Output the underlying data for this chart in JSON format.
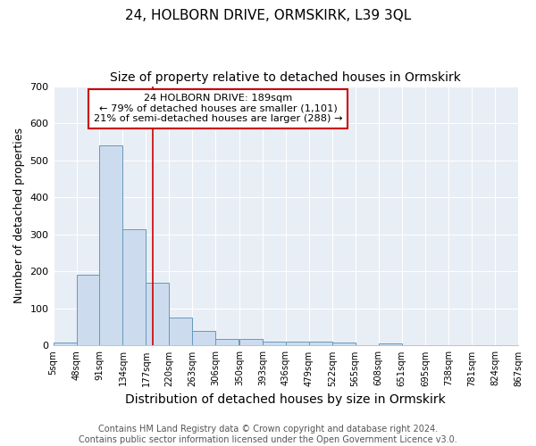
{
  "title1": "24, HOLBORN DRIVE, ORMSKIRK, L39 3QL",
  "title2": "Size of property relative to detached houses in Ormskirk",
  "xlabel": "Distribution of detached houses by size in Ormskirk",
  "ylabel": "Number of detached properties",
  "bin_labels": [
    "5sqm",
    "48sqm",
    "91sqm",
    "134sqm",
    "177sqm",
    "220sqm",
    "263sqm",
    "306sqm",
    "350sqm",
    "393sqm",
    "436sqm",
    "479sqm",
    "522sqm",
    "565sqm",
    "608sqm",
    "651sqm",
    "695sqm",
    "738sqm",
    "781sqm",
    "824sqm",
    "867sqm"
  ],
  "bin_edges": [
    5,
    48,
    91,
    134,
    177,
    220,
    263,
    306,
    350,
    393,
    436,
    479,
    522,
    565,
    608,
    651,
    695,
    738,
    781,
    824,
    867
  ],
  "bar_values": [
    8,
    190,
    540,
    315,
    170,
    75,
    40,
    18,
    18,
    11,
    11,
    11,
    8,
    0,
    6,
    0,
    0,
    0,
    0,
    0
  ],
  "bar_color": "#ccdcee",
  "bar_edge_color": "#6699bb",
  "property_size": 189,
  "vline_color": "#cc0000",
  "annotation_line1": "24 HOLBORN DRIVE: 189sqm",
  "annotation_line2": "← 79% of detached houses are smaller (1,101)",
  "annotation_line3": "21% of semi-detached houses are larger (288) →",
  "annotation_box_color": "white",
  "annotation_box_edge_color": "#cc0000",
  "ylim": [
    0,
    700
  ],
  "yticks": [
    0,
    100,
    200,
    300,
    400,
    500,
    600,
    700
  ],
  "footer_text": "Contains HM Land Registry data © Crown copyright and database right 2024.\nContains public sector information licensed under the Open Government Licence v3.0.",
  "bg_color": "white",
  "plot_bg_color": "#e8eef5",
  "grid_color": "#ffffff",
  "title1_fontsize": 11,
  "title2_fontsize": 10,
  "xlabel_fontsize": 10,
  "ylabel_fontsize": 9,
  "footer_fontsize": 7
}
